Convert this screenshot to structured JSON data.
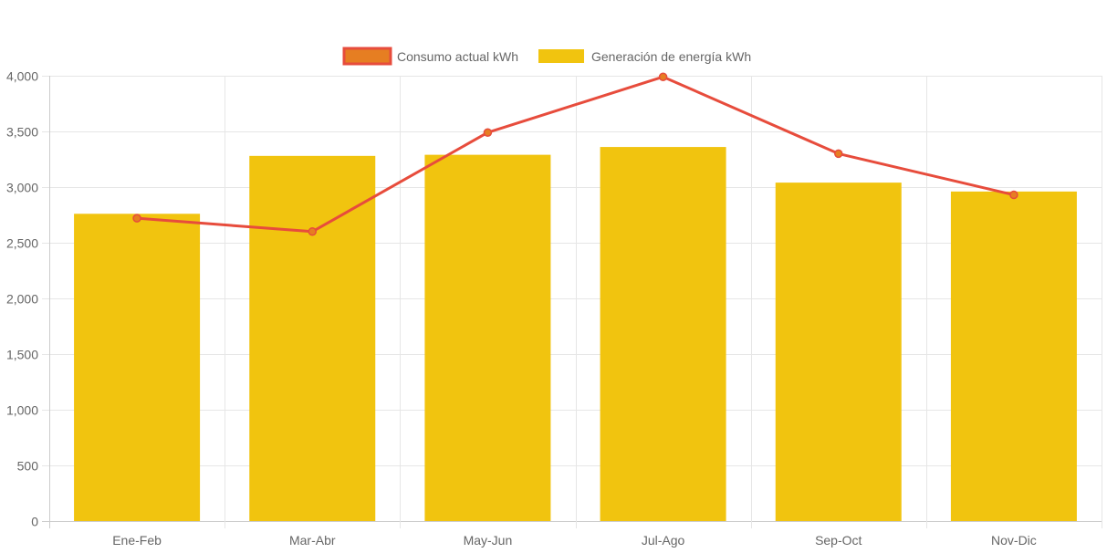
{
  "chart_data": {
    "type": "bar",
    "categories": [
      "Ene-Feb",
      "Mar-Abr",
      "May-Jun",
      "Jul-Ago",
      "Sep-Oct",
      "Nov-Dic"
    ],
    "series": [
      {
        "name": "Consumo actual kWh",
        "type": "line",
        "values": [
          2720,
          2600,
          3490,
          3990,
          3300,
          2930
        ],
        "color": "#e74c3c",
        "fill": "#e67e22"
      },
      {
        "name": "Generación de energía kWh",
        "type": "bar",
        "values": [
          2760,
          3280,
          3290,
          3360,
          3040,
          2960
        ],
        "color": "#f1c40f"
      }
    ],
    "yticks": [
      "0",
      "500",
      "1,000",
      "1,500",
      "2,000",
      "2,500",
      "3,000",
      "3,500",
      "4,000"
    ],
    "ylim": [
      0,
      4000
    ],
    "grid": true,
    "legend_position": "top-center"
  }
}
